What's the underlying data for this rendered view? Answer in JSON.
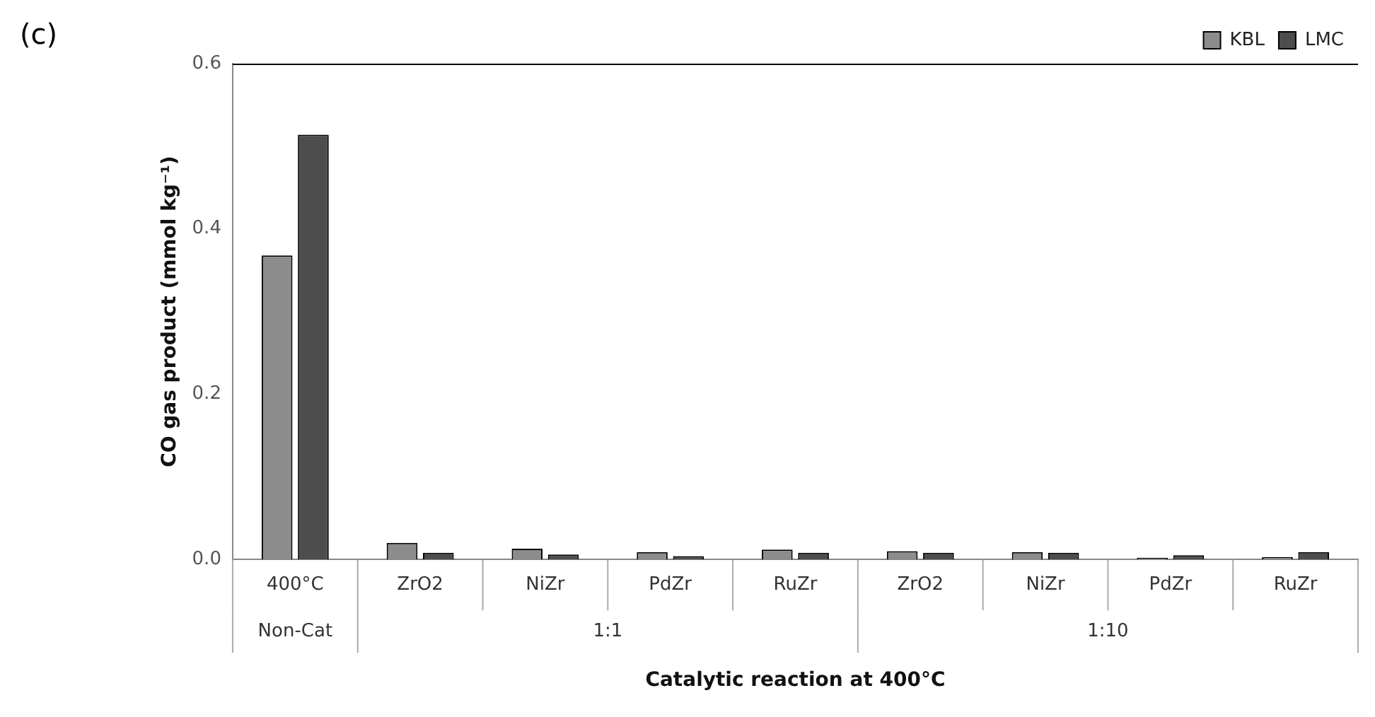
{
  "chart_data": {
    "type": "bar",
    "title": "(c)",
    "xlabel": "Catalytic reaction at 400°C",
    "ylabel": "CO gas product (mmol kg⁻¹)",
    "categories": [
      "400°C",
      "ZrO2",
      "NiZr",
      "PdZr",
      "RuZr",
      "ZrO2",
      "NiZr",
      "PdZr",
      "RuZr"
    ],
    "series": [
      {
        "name": "KBL",
        "color": "#8c8c8c",
        "values": [
          0.368,
          0.02,
          0.013,
          0.009,
          0.012,
          0.01,
          0.009,
          0.002,
          0.003
        ]
      },
      {
        "name": "LMC",
        "color": "#4d4d4d",
        "values": [
          0.514,
          0.008,
          0.006,
          0.004,
          0.008,
          0.008,
          0.008,
          0.005,
          0.009
        ]
      }
    ],
    "annotations": [
      "Non-Cat",
      "1:1",
      "1:10"
    ],
    "ylim": [
      0,
      0.6
    ],
    "yticks": [
      {
        "value": 0,
        "label": "0.0"
      },
      {
        "value": 0.2,
        "label": "0.2"
      },
      {
        "value": 0.4,
        "label": "0.4"
      },
      {
        "value": 0.6,
        "label": "0.6"
      }
    ],
    "grid": false,
    "legend": "top right"
  }
}
